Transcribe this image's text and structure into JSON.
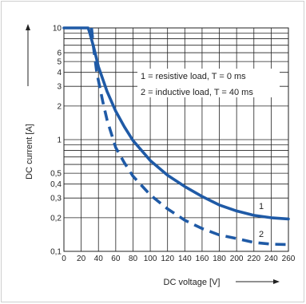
{
  "chart_data": {
    "type": "line",
    "xlabel": "DC voltage [V]",
    "ylabel": "DC current [A]",
    "x_ticks": [
      0,
      20,
      40,
      60,
      80,
      100,
      120,
      140,
      160,
      180,
      200,
      220,
      240,
      260
    ],
    "y_ticks": [
      {
        "value": 10,
        "label": "10"
      },
      {
        "value": 6,
        "label": "6"
      },
      {
        "value": 5,
        "label": "5"
      },
      {
        "value": 4,
        "label": "4"
      },
      {
        "value": 3,
        "label": "3"
      },
      {
        "value": 2,
        "label": "2"
      },
      {
        "value": 1,
        "label": "1"
      },
      {
        "value": 0.5,
        "label": "0,5"
      },
      {
        "value": 0.4,
        "label": "0,4"
      },
      {
        "value": 0.3,
        "label": "0,3"
      },
      {
        "value": 0.2,
        "label": "0,2"
      },
      {
        "value": 0.1,
        "label": "0,1"
      }
    ],
    "xlim": [
      0,
      260
    ],
    "ylim": [
      0.1,
      10
    ],
    "y_scale": "log",
    "grid": true,
    "legend_lines": [
      "1 = resistive load, T = 0 ms",
      "2 = inductive load, T = 40 ms"
    ],
    "series": [
      {
        "name": "1",
        "style": "solid",
        "color": "#1f5aa6",
        "x": [
          0,
          28,
          30,
          35,
          40,
          50,
          60,
          70,
          80,
          100,
          120,
          140,
          160,
          180,
          200,
          220,
          240,
          260
        ],
        "y": [
          10,
          10,
          9,
          6.5,
          4.5,
          2.7,
          1.8,
          1.3,
          0.98,
          0.65,
          0.48,
          0.38,
          0.31,
          0.26,
          0.23,
          0.21,
          0.2,
          0.195
        ]
      },
      {
        "name": "2",
        "style": "dashed",
        "color": "#1f5aa6",
        "x": [
          32,
          34,
          38,
          45,
          50,
          60,
          70,
          80,
          100,
          120,
          140,
          160,
          180,
          200,
          220,
          240,
          260
        ],
        "y": [
          10,
          7,
          4,
          2.2,
          1.5,
          0.85,
          0.62,
          0.47,
          0.32,
          0.24,
          0.19,
          0.16,
          0.14,
          0.13,
          0.12,
          0.116,
          0.115
        ]
      }
    ]
  }
}
